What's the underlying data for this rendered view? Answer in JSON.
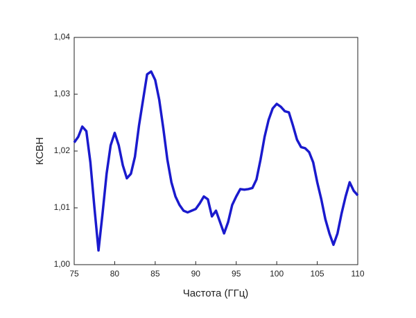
{
  "chart_data": {
    "type": "line",
    "xlabel": "Частота (ГГц)",
    "ylabel": "КСВН",
    "xlim": [
      75,
      110
    ],
    "xticks": [
      75,
      80,
      85,
      90,
      95,
      100,
      105,
      110
    ],
    "ylim": [
      1.0,
      1.04
    ],
    "yticks": [
      {
        "value": 1.0,
        "label": "1,00"
      },
      {
        "value": 1.01,
        "label": "1,01"
      },
      {
        "value": 1.02,
        "label": "1,02"
      },
      {
        "value": 1.03,
        "label": "1,03"
      },
      {
        "value": 1.04,
        "label": "1,04"
      }
    ],
    "x": [
      75,
      75.5,
      76,
      76.5,
      77,
      77.5,
      78,
      78.5,
      79,
      79.5,
      80,
      80.5,
      81,
      81.5,
      82,
      82.5,
      83,
      83.5,
      84,
      84.5,
      85,
      85.5,
      86,
      86.5,
      87,
      87.5,
      88,
      88.5,
      89,
      89.5,
      90,
      90.5,
      91,
      91.5,
      92,
      92.5,
      93,
      93.5,
      94,
      94.5,
      95,
      95.5,
      96,
      96.5,
      97,
      97.5,
      98,
      98.5,
      99,
      99.5,
      100,
      100.5,
      101,
      101.5,
      102,
      102.5,
      103,
      103.5,
      104,
      104.5,
      105,
      105.5,
      106,
      106.5,
      107,
      107.5,
      108,
      108.5,
      109,
      109.5,
      110
    ],
    "series": [
      {
        "color": "#1a1acd",
        "values": [
          1.0215,
          1.0225,
          1.0243,
          1.0235,
          1.018,
          1.01,
          1.0025,
          1.009,
          1.016,
          1.021,
          1.0232,
          1.021,
          1.0175,
          1.0152,
          1.016,
          1.019,
          1.0245,
          1.029,
          1.0335,
          1.034,
          1.0325,
          1.029,
          1.024,
          1.0185,
          1.0145,
          1.012,
          1.0105,
          1.0095,
          1.0092,
          1.0095,
          1.0098,
          1.0108,
          1.012,
          1.0115,
          1.0085,
          1.0095,
          1.0075,
          1.0055,
          1.0075,
          1.0105,
          1.012,
          1.0133,
          1.0132,
          1.0133,
          1.0135,
          1.015,
          1.0185,
          1.0225,
          1.0255,
          1.0275,
          1.0283,
          1.0278,
          1.027,
          1.0268,
          1.0245,
          1.022,
          1.0207,
          1.0205,
          1.0198,
          1.018,
          1.0145,
          1.0115,
          1.008,
          1.0055,
          1.0035,
          1.0055,
          1.009,
          1.012,
          1.0145,
          1.013,
          1.0122
        ]
      }
    ]
  }
}
